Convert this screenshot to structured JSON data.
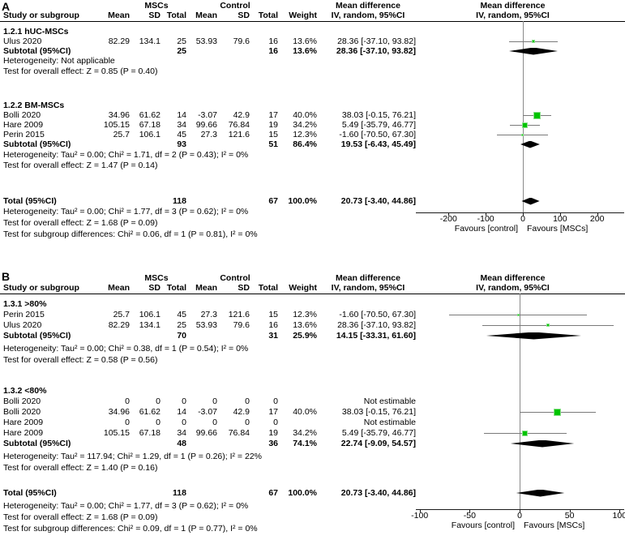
{
  "colors": {
    "marker_green": "#00c400",
    "marker_green_border": "#8ce08c",
    "ci_line_gray": "#7a7a7a",
    "zero_line_gray": "#8a8a8a",
    "axis_black": "#1a1a1a",
    "diamond_black": "#000000",
    "text_black": "#000000"
  },
  "chart_data": [
    {
      "type": "forest",
      "panel_label": "A",
      "effect_measure": "Mean difference",
      "model": "IV, random, 95%CI",
      "header": {
        "group1": "MSCs",
        "group2": "Control",
        "study": "Study or subgroup",
        "mean": "Mean",
        "sd": "SD",
        "total": "Total",
        "weight": "Weight",
        "md_line1": "Mean difference",
        "md_line2": "IV, random, 95%CI"
      },
      "sections": [
        {
          "title": "1.2.1 hUC-MSCs",
          "rows": [
            {
              "study": "Ulus 2020",
              "m1": "82.29",
              "sd1": "134.1",
              "t1": "25",
              "m2": "53.93",
              "sd2": "79.6",
              "t2": "16",
              "weight": "13.6%",
              "ci": "28.36 [-37.10, 93.82]",
              "est": 28.36,
              "lo": -37.1,
              "hi": 93.82
            }
          ],
          "subtotal": {
            "label": "Subtotal (95%CI)",
            "t1": "25",
            "t2": "16",
            "weight": "13.6%",
            "ci": "28.36 [-37.10, 93.82]",
            "est": 28.36,
            "lo": -37.1,
            "hi": 93.82
          },
          "heterogeneity": "Heterogeneity: Not applicable",
          "overall_effect": "Test for overall effect: Z = 0.85 (P = 0.40)"
        },
        {
          "title": "1.2.2 BM-MSCs",
          "rows": [
            {
              "study": "Bolli 2020",
              "m1": "34.96",
              "sd1": "61.62",
              "t1": "14",
              "m2": "-3.07",
              "sd2": "42.9",
              "t2": "17",
              "weight": "40.0%",
              "ci": "38.03 [-0.15, 76.21]",
              "est": 38.03,
              "lo": -0.15,
              "hi": 76.21
            },
            {
              "study": "Hare 2009",
              "m1": "105.15",
              "sd1": "67.18",
              "t1": "34",
              "m2": "99.66",
              "sd2": "76.84",
              "t2": "19",
              "weight": "34.2%",
              "ci": "5.49 [-35.79, 46.77]",
              "est": 5.49,
              "lo": -35.79,
              "hi": 46.77
            },
            {
              "study": "Perin 2015",
              "m1": "25.7",
              "sd1": "106.1",
              "t1": "45",
              "m2": "27.3",
              "sd2": "121.6",
              "t2": "15",
              "weight": "12.3%",
              "ci": "-1.60 [-70.50, 67.30]",
              "est": -1.6,
              "lo": -70.5,
              "hi": 67.3
            }
          ],
          "subtotal": {
            "label": "Subtotal (95%CI)",
            "t1": "93",
            "t2": "51",
            "weight": "86.4%",
            "ci": "19.53 [-6.43, 45.49]",
            "est": 19.53,
            "lo": -6.43,
            "hi": 45.49
          },
          "heterogeneity": "Heterogeneity: Tau² = 0.00; Chi² = 1.71, df = 2 (P = 0.43); I² = 0%",
          "overall_effect": "Test for overall effect: Z = 1.47 (P = 0.14)"
        }
      ],
      "total": {
        "label": "Total (95%CI)",
        "t1": "118",
        "t2": "67",
        "weight": "100.0%",
        "ci": "20.73 [-3.40, 44.86]",
        "est": 20.73,
        "lo": -3.4,
        "hi": 44.86
      },
      "total_heterogeneity": "Heterogeneity: Tau² = 0.00; Chi² = 1.77, df = 3 (P = 0.62); I² = 0%",
      "total_effect": "Test for overall effect: Z = 1.68 (P = 0.09)",
      "subgroup_differences": "Test for subgroup differences: Chi² = 0.06, df = 1 (P = 0.81), I² = 0%",
      "axis": {
        "ticks": [
          -200,
          -100,
          0,
          100,
          200
        ],
        "min": -288,
        "max": 275,
        "favours_left": "Favours [control]",
        "favours_right": "Favours [MSCs]"
      }
    },
    {
      "type": "forest",
      "panel_label": "B",
      "effect_measure": "Mean difference",
      "model": "IV, random, 95%CI",
      "header": {
        "group1": "MSCs",
        "group2": "Control",
        "study": "Study or subgroup",
        "mean": "Mean",
        "sd": "SD",
        "total": "Total",
        "weight": "Weight",
        "md_line1": "Mean difference",
        "md_line2": "IV, random, 95%CI"
      },
      "sections": [
        {
          "title": "1.3.1 >80%",
          "rows": [
            {
              "study": "Perin 2015",
              "m1": "25.7",
              "sd1": "106.1",
              "t1": "45",
              "m2": "27.3",
              "sd2": "121.6",
              "t2": "15",
              "weight": "12.3%",
              "ci": "-1.60 [-70.50, 67.30]",
              "est": -1.6,
              "lo": -70.5,
              "hi": 67.3
            },
            {
              "study": "Ulus 2020",
              "m1": "82.29",
              "sd1": "134.1",
              "t1": "25",
              "m2": "53.93",
              "sd2": "79.6",
              "t2": "16",
              "weight": "13.6%",
              "ci": "28.36 [-37.10, 93.82]",
              "est": 28.36,
              "lo": -37.1,
              "hi": 93.82
            }
          ],
          "subtotal": {
            "label": "Subtotal (95%CI)",
            "t1": "70",
            "t2": "31",
            "weight": "25.9%",
            "ci": "14.15 [-33.31, 61.60]",
            "est": 14.15,
            "lo": -33.31,
            "hi": 61.6
          },
          "heterogeneity": "Heterogeneity: Tau² = 0.00; Chi² = 0.38, df = 1 (P = 0.54); I² = 0%",
          "overall_effect": "Test for overall effect: Z = 0.58 (P = 0.56)"
        },
        {
          "title": "1.3.2 <80%",
          "rows": [
            {
              "study": "Bolli 2020",
              "m1": "0",
              "sd1": "0",
              "t1": "0",
              "m2": "0",
              "sd2": "0",
              "t2": "0",
              "weight": "",
              "ci": "Not estimable"
            },
            {
              "study": "Bolli 2020",
              "m1": "34.96",
              "sd1": "61.62",
              "t1": "14",
              "m2": "-3.07",
              "sd2": "42.9",
              "t2": "17",
              "weight": "40.0%",
              "ci": "38.03 [-0.15, 76.21]",
              "est": 38.03,
              "lo": -0.15,
              "hi": 76.21
            },
            {
              "study": "Hare 2009",
              "m1": "0",
              "sd1": "0",
              "t1": "0",
              "m2": "0",
              "sd2": "0",
              "t2": "0",
              "weight": "",
              "ci": "Not estimable"
            },
            {
              "study": "Hare 2009",
              "m1": "105.15",
              "sd1": "67.18",
              "t1": "34",
              "m2": "99.66",
              "sd2": "76.84",
              "t2": "19",
              "weight": "34.2%",
              "ci": "5.49 [-35.79, 46.77]",
              "est": 5.49,
              "lo": -35.79,
              "hi": 46.77
            }
          ],
          "subtotal": {
            "label": "Subtotal (95%CI)",
            "t1": "48",
            "t2": "36",
            "weight": "74.1%",
            "ci": "22.74 [-9.09, 54.57]",
            "est": 22.74,
            "lo": -9.09,
            "hi": 54.57
          },
          "heterogeneity": "Heterogeneity: Tau² = 117.94; Chi² = 1.29, df = 1 (P = 0.26); I² = 22%",
          "overall_effect": "Test for overall effect: Z = 1.40 (P = 0.16)"
        }
      ],
      "total": {
        "label": "Total (95%CI)",
        "t1": "118",
        "t2": "67",
        "weight": "100.0%",
        "ci": "20.73 [-3.40, 44.86]",
        "est": 20.73,
        "lo": -3.4,
        "hi": 44.86
      },
      "total_heterogeneity": "Heterogeneity: Tau² = 0.00; Chi² = 1.77, df = 3 (P = 0.62); I² = 0%",
      "total_effect": "Test for overall effect: Z = 1.68 (P = 0.09)",
      "subgroup_differences": "Test for subgroup differences: Chi² = 0.09, df = 1 (P = 0.77), I² = 0%",
      "axis": {
        "ticks": [
          -100,
          -50,
          0,
          50,
          100
        ],
        "min": -104,
        "max": 209,
        "favours_left": "Favours [control]",
        "favours_right": "Favours [MSCs]"
      }
    }
  ]
}
